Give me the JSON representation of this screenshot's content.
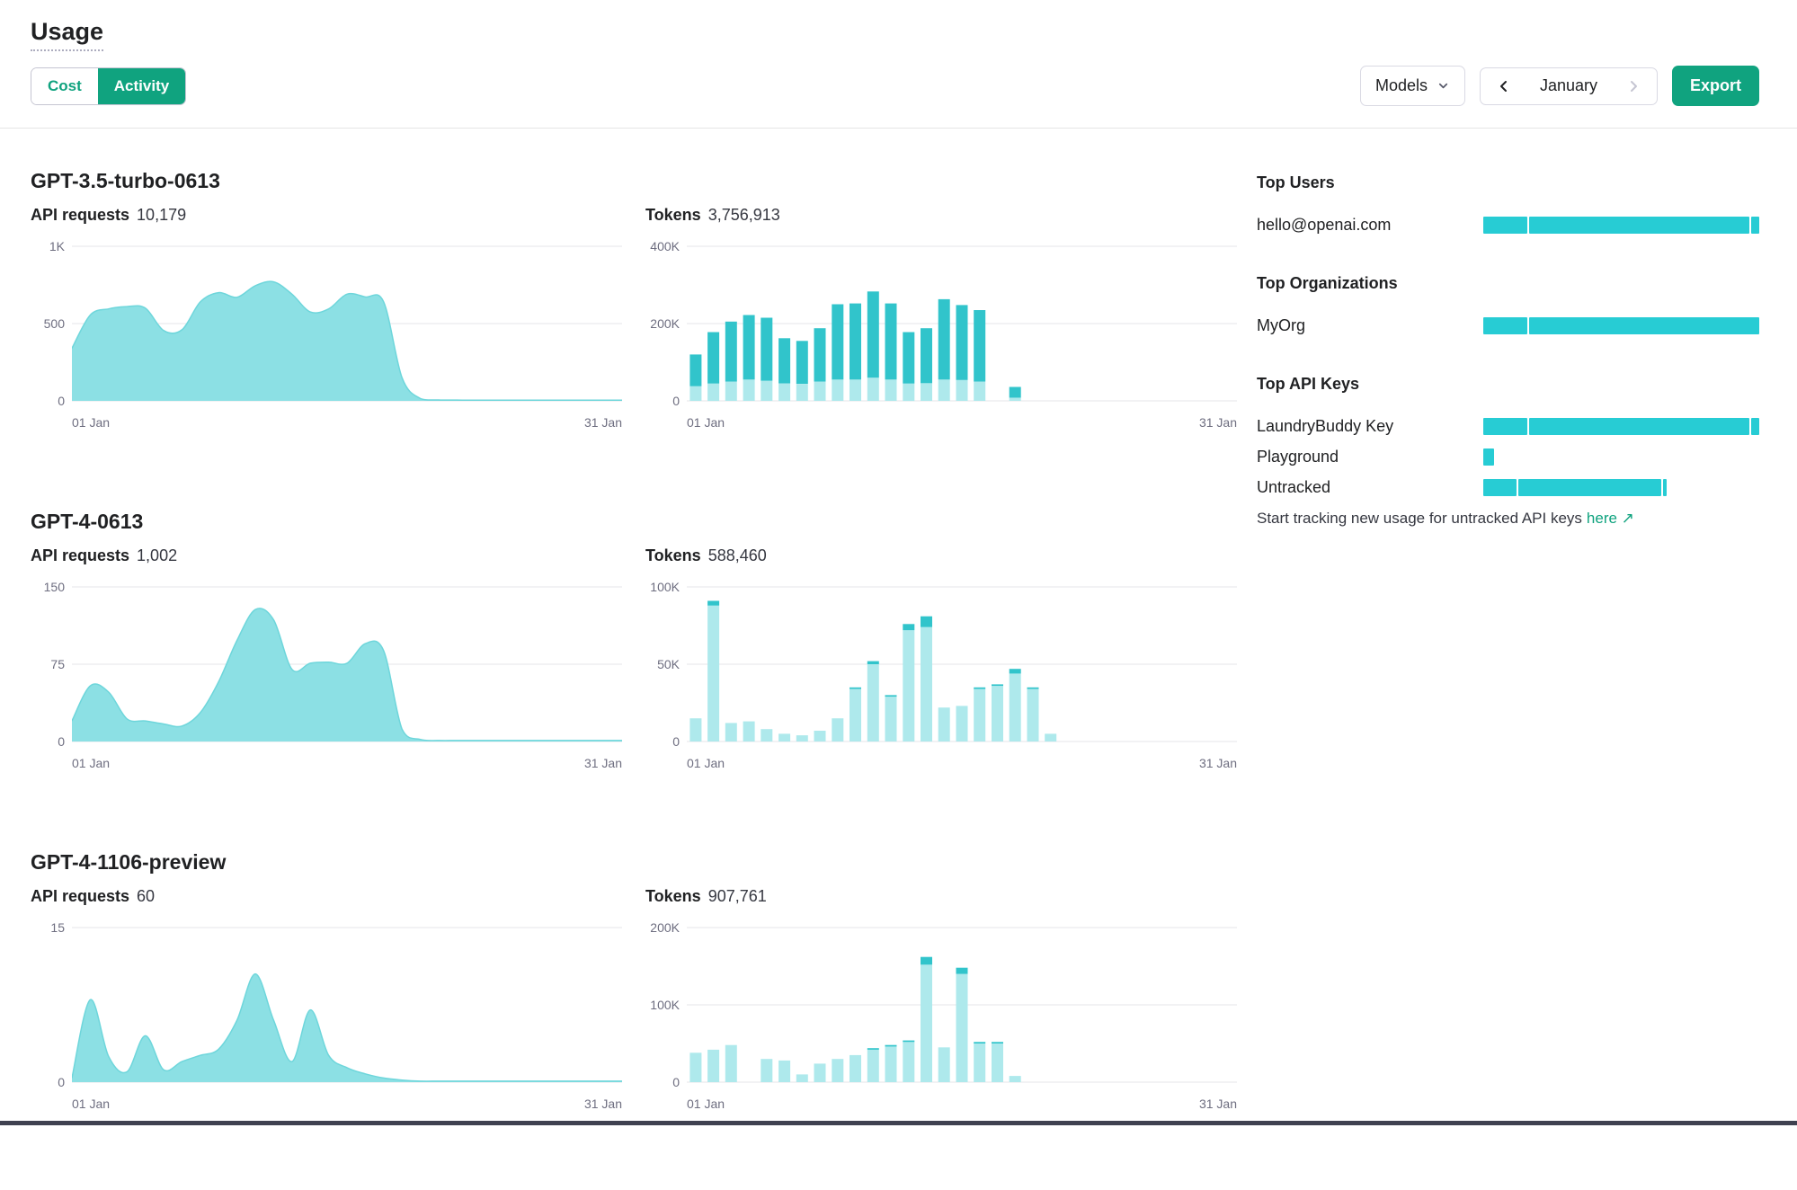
{
  "page": {
    "title": "Usage"
  },
  "toolbar": {
    "cost": "Cost",
    "activity": "Activity",
    "models": "Models",
    "month": "January",
    "export": "Export"
  },
  "sections": [
    {
      "model": "GPT-3.5-turbo-0613"
    },
    {
      "model": "GPT-4-0613"
    },
    {
      "model": "GPT-4-1106-preview"
    }
  ],
  "chart_data": [
    {
      "id": "gpt35-requests",
      "type": "area",
      "metric": "API requests",
      "total": "10,179",
      "x_start": "01 Jan",
      "x_end": "31 Jan",
      "ymax": 1000,
      "y_ticks": [
        0,
        500,
        1000
      ],
      "y_tick_labels": [
        "0",
        "500",
        "1K"
      ],
      "values": [
        340,
        555,
        595,
        610,
        600,
        455,
        460,
        640,
        700,
        670,
        745,
        770,
        690,
        575,
        595,
        690,
        672,
        640,
        150,
        15,
        6,
        5,
        4,
        4,
        4,
        4,
        4,
        4,
        4,
        4,
        4
      ]
    },
    {
      "id": "gpt35-tokens",
      "type": "stacked_bar",
      "metric": "Tokens",
      "total": "3,756,913",
      "x_start": "01 Jan",
      "x_end": "31 Jan",
      "ymax": 400000,
      "y_ticks": [
        0,
        200000,
        400000
      ],
      "y_tick_labels": [
        "0",
        "200K",
        "400K"
      ],
      "series": [
        {
          "name": "bottom",
          "values": [
            38000,
            45000,
            50000,
            55000,
            52000,
            45000,
            44000,
            50000,
            55000,
            55000,
            60000,
            55000,
            45000,
            46000,
            55000,
            54000,
            50000,
            0,
            8000,
            0,
            0,
            0,
            0,
            0,
            0,
            0,
            0,
            0,
            0,
            0,
            0
          ]
        },
        {
          "name": "top",
          "values": [
            82000,
            133000,
            155000,
            167000,
            163000,
            117000,
            111000,
            138000,
            195000,
            197000,
            223000,
            197000,
            133000,
            142000,
            208000,
            194000,
            185000,
            0,
            28000,
            0,
            0,
            0,
            0,
            0,
            0,
            0,
            0,
            0,
            0,
            0,
            0
          ]
        }
      ]
    },
    {
      "id": "gpt4-requests",
      "type": "area",
      "metric": "API requests",
      "total": "1,002",
      "x_start": "01 Jan",
      "x_end": "31 Jan",
      "ymax": 150,
      "y_ticks": [
        0,
        75,
        150
      ],
      "y_tick_labels": [
        "0",
        "75",
        "150"
      ],
      "values": [
        20,
        54,
        48,
        22,
        20,
        17,
        15,
        28,
        58,
        98,
        128,
        118,
        70,
        76,
        77,
        76,
        95,
        88,
        12,
        2,
        1,
        1,
        1,
        1,
        1,
        1,
        1,
        1,
        1,
        1,
        1
      ]
    },
    {
      "id": "gpt4-tokens",
      "type": "stacked_bar",
      "metric": "Tokens",
      "total": "588,460",
      "x_start": "01 Jan",
      "x_end": "31 Jan",
      "ymax": 100000,
      "y_ticks": [
        0,
        50000,
        100000
      ],
      "y_tick_labels": [
        "0",
        "50K",
        "100K"
      ],
      "series": [
        {
          "name": "bottom",
          "values": [
            15000,
            88000,
            12000,
            13000,
            8000,
            5000,
            4000,
            7000,
            15000,
            34000,
            50000,
            29000,
            72000,
            74000,
            22000,
            23000,
            34000,
            36000,
            44000,
            34000,
            5000,
            0,
            0,
            0,
            0,
            0,
            0,
            0,
            0,
            0,
            0
          ]
        },
        {
          "name": "top",
          "values": [
            0,
            3000,
            0,
            0,
            0,
            0,
            0,
            0,
            0,
            1000,
            2000,
            1000,
            4000,
            7000,
            0,
            0,
            1000,
            1000,
            3000,
            1000,
            0,
            0,
            0,
            0,
            0,
            0,
            0,
            0,
            0,
            0,
            0
          ]
        }
      ]
    },
    {
      "id": "gpt4-1106-requests",
      "type": "area",
      "metric": "API requests",
      "total": "60",
      "x_start": "01 Jan",
      "x_end": "31 Jan",
      "ymax": 15,
      "y_ticks": [
        0,
        15
      ],
      "y_tick_labels": [
        "0",
        "15"
      ],
      "values": [
        0.4,
        8,
        2.5,
        1,
        4.5,
        1.2,
        2,
        2.6,
        3.2,
        6,
        10.5,
        6,
        2,
        7,
        2.6,
        1.4,
        0.8,
        0.4,
        0.2,
        0.1,
        0.1,
        0.1,
        0.1,
        0.1,
        0.1,
        0.1,
        0.1,
        0.1,
        0.1,
        0.1,
        0.1
      ]
    },
    {
      "id": "gpt4-1106-tokens",
      "type": "stacked_bar",
      "metric": "Tokens",
      "total": "907,761",
      "x_start": "01 Jan",
      "x_end": "31 Jan",
      "ymax": 200000,
      "y_ticks": [
        0,
        100000,
        200000
      ],
      "y_tick_labels": [
        "0",
        "100K",
        "200K"
      ],
      "series": [
        {
          "name": "bottom",
          "values": [
            38000,
            42000,
            48000,
            0,
            30000,
            28000,
            10000,
            24000,
            30000,
            35000,
            42000,
            46000,
            52000,
            152000,
            45000,
            140000,
            50000,
            50000,
            8000,
            0,
            0,
            0,
            0,
            0,
            0,
            0,
            0,
            0,
            0,
            0,
            0
          ]
        },
        {
          "name": "top",
          "values": [
            0,
            0,
            0,
            0,
            0,
            0,
            0,
            0,
            0,
            0,
            2000,
            2000,
            2000,
            10000,
            0,
            8000,
            2000,
            2000,
            0,
            0,
            0,
            0,
            0,
            0,
            0,
            0,
            0,
            0,
            0,
            0,
            0
          ]
        }
      ]
    }
  ],
  "sidebar": {
    "sections": [
      {
        "heading": "Top Users",
        "rows": [
          {
            "label": "hello@openai.com",
            "segments": [
              16,
              80,
              3
            ]
          }
        ]
      },
      {
        "heading": "Top Organizations",
        "rows": [
          {
            "label": "MyOrg",
            "segments": [
              16,
              84
            ]
          }
        ]
      },
      {
        "heading": "Top API Keys",
        "rows": [
          {
            "label": "LaundryBuddy Key",
            "segments": [
              16,
              80,
              3
            ]
          },
          {
            "label": "Playground",
            "segments": [
              4
            ]
          },
          {
            "label": "Untracked",
            "segments": [
              12,
              52,
              1
            ]
          }
        ]
      }
    ],
    "footnote": {
      "text": "Start tracking new usage for untracked API keys",
      "link": "here",
      "arrow": "↗"
    }
  },
  "colors": {
    "accent_green": "#10a37f",
    "area_fill": "#8ce0e4",
    "area_stroke": "#6ed6db",
    "bar_light": "#aee9ec",
    "bar_dark": "#31c4cb",
    "sidebar_bar": "#27ccd4",
    "gridline": "#e5e5e9",
    "axis_text": "#6e6e80"
  }
}
